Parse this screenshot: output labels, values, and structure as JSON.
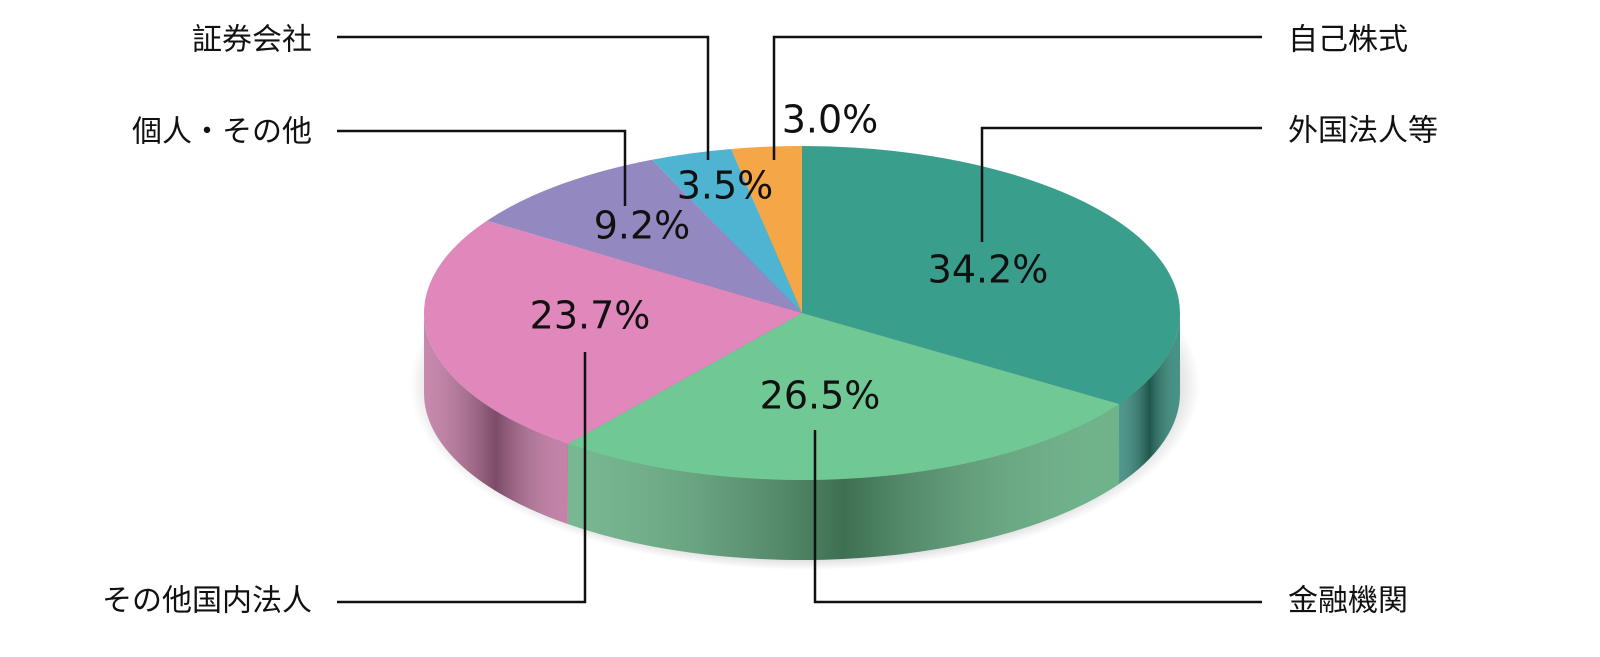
{
  "chart_data": {
    "type": "pie",
    "categories": [
      "外国法人等",
      "金融機関",
      "その他国内法人",
      "個人・その他",
      "証券会社",
      "自己株式"
    ],
    "values": [
      34.2,
      26.5,
      23.7,
      9.2,
      3.5,
      3.0
    ],
    "value_labels": [
      "34.2%",
      "26.5%",
      "23.7%",
      "9.2%",
      "3.5%",
      "3.0%"
    ],
    "colors": [
      "#3a9e8c",
      "#70c994",
      "#e088bb",
      "#9488c0",
      "#4fb3d2",
      "#f5a647"
    ]
  }
}
